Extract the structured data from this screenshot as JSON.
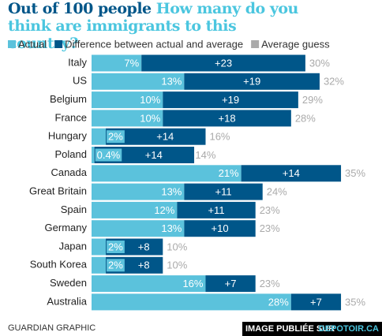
{
  "chart_data": {
    "type": "bar",
    "title": "Out of 100 people",
    "subtitle": "How many do you think are immigrants to this country?",
    "categories": [
      "Italy",
      "US",
      "Belgium",
      "France",
      "Hungary",
      "Poland",
      "Canada",
      "Great Britain",
      "Spain",
      "Germany",
      "Japan",
      "South Korea",
      "Sweden",
      "Australia"
    ],
    "series": [
      {
        "name": "Actual",
        "color": "#5bc2dc",
        "values": [
          7,
          13,
          10,
          10,
          2,
          0.4,
          21,
          13,
          12,
          13,
          2,
          2,
          16,
          28
        ],
        "value_labels": [
          "7%",
          "13%",
          "10%",
          "10%",
          "2%",
          "0.4%",
          "21%",
          "13%",
          "12%",
          "13%",
          "2%",
          "2%",
          "16%",
          "28%"
        ]
      },
      {
        "name": "Difference between actual and average",
        "color": "#005689",
        "values": [
          23,
          19,
          19,
          18,
          14,
          14,
          14,
          11,
          11,
          10,
          8,
          8,
          7,
          7
        ],
        "value_labels": [
          "+23",
          "+19",
          "+19",
          "+18",
          "+14",
          "+14",
          "+14",
          "+11",
          "+11",
          "+10",
          "+8",
          "+8",
          "+7",
          "+7"
        ]
      },
      {
        "name": "Average guess",
        "color": "#aaaaaa",
        "values": [
          30,
          32,
          29,
          28,
          16,
          14,
          35,
          24,
          23,
          23,
          10,
          10,
          23,
          35
        ],
        "value_labels": [
          "30%",
          "32%",
          "29%",
          "28%",
          "16%",
          "14%",
          "35%",
          "24%",
          "23%",
          "23%",
          "10%",
          "10%",
          "23%",
          "35%"
        ]
      }
    ],
    "source": "GUARDIAN GRAPHIC",
    "watermark": "IMAGE PUBLIÉE SUR",
    "watermark_site": "DEPOTOIR.CA"
  }
}
